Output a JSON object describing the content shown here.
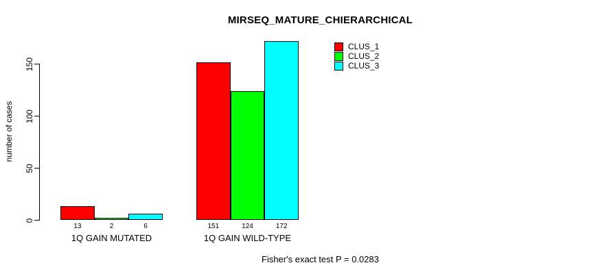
{
  "page": {
    "background": "#ffffff"
  },
  "chart_data": {
    "type": "bar",
    "title": "MIRSEQ_MATURE_CHIERARCHICAL",
    "xlabel": "",
    "ylabel": "number of cases",
    "categories": [
      "1Q GAIN MUTATED",
      "1Q GAIN WILD-TYPE"
    ],
    "series": [
      {
        "name": "CLUS_1",
        "color": "#ff0000",
        "values": [
          13,
          151
        ]
      },
      {
        "name": "CLUS_2",
        "color": "#00ff00",
        "values": [
          2,
          124
        ]
      },
      {
        "name": "CLUS_3",
        "color": "#00ffff",
        "values": [
          6,
          172
        ]
      }
    ],
    "bar_value_labels": [
      [
        "13",
        "2",
        "6"
      ],
      [
        "151",
        "124",
        "172"
      ]
    ],
    "yticks": [
      "0",
      "50",
      "100",
      "150"
    ],
    "ytick_values": [
      0,
      50,
      100,
      150
    ],
    "ylim": [
      0,
      150
    ],
    "grid": false,
    "legend_position": "top-right",
    "legend_entries": [
      {
        "label": "CLUS_1",
        "color": "#ff0000"
      },
      {
        "label": "CLUS_2",
        "color": "#00ff00"
      },
      {
        "label": "CLUS_3",
        "color": "#00ffff"
      }
    ],
    "annotation": "Fisher's exact test P = 0.0283",
    "axis_color": "#000000"
  }
}
